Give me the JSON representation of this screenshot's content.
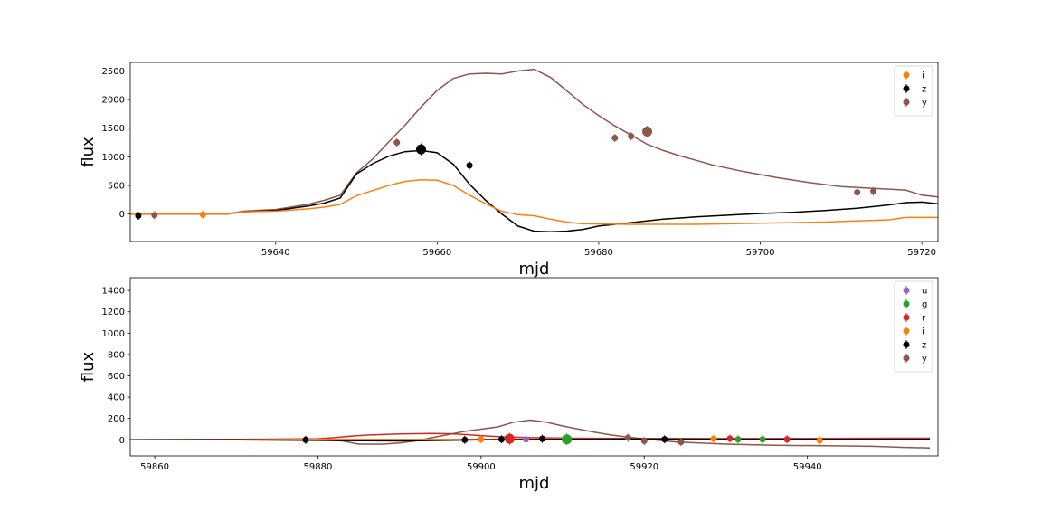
{
  "chart_data": [
    {
      "type": "line",
      "xlabel": "mjd",
      "ylabel": "flux",
      "xlim": [
        59622,
        59722
      ],
      "ylim": [
        -480,
        2650
      ],
      "xticks": [
        59640,
        59660,
        59680,
        59700,
        59720
      ],
      "yticks": [
        0,
        500,
        1000,
        1500,
        2000,
        2500
      ],
      "legend_position": "top-right",
      "legend": [
        {
          "label": "i",
          "color": "#ff7f0e"
        },
        {
          "label": "z",
          "color": "#000000"
        },
        {
          "label": "y",
          "color": "#8c564b"
        }
      ],
      "lines": [
        {
          "color": "#8c564b",
          "x": [
            59622,
            59628,
            59634,
            59636,
            59640,
            59644,
            59646,
            59648,
            59650,
            59652,
            59654,
            59656,
            59658,
            59660,
            59662,
            59664,
            59666,
            59668,
            59670,
            59672,
            59674,
            59676,
            59678,
            59680,
            59682,
            59684,
            59686,
            59688,
            59690,
            59694,
            59698,
            59702,
            59706,
            59710,
            59714,
            59718,
            59720,
            59722
          ],
          "y": [
            0,
            0,
            0,
            50,
            80,
            170,
            240,
            330,
            720,
            960,
            1260,
            1550,
            1870,
            2160,
            2370,
            2450,
            2460,
            2450,
            2500,
            2530,
            2390,
            2160,
            1920,
            1720,
            1540,
            1380,
            1220,
            1110,
            1020,
            860,
            740,
            640,
            550,
            480,
            450,
            420,
            330,
            300
          ]
        },
        {
          "color": "#000000",
          "x": [
            59622,
            59628,
            59634,
            59636,
            59640,
            59644,
            59646,
            59648,
            59650,
            59652,
            59654,
            59656,
            59658,
            59660,
            59662,
            59664,
            59666,
            59668,
            59670,
            59672,
            59674,
            59676,
            59678,
            59680,
            59684,
            59688,
            59692,
            59696,
            59700,
            59704,
            59708,
            59712,
            59716,
            59718,
            59720,
            59722
          ],
          "y": [
            0,
            0,
            0,
            40,
            60,
            140,
            190,
            280,
            700,
            880,
            1010,
            1090,
            1110,
            1070,
            870,
            520,
            240,
            0,
            -210,
            -300,
            -310,
            -300,
            -270,
            -210,
            -150,
            -90,
            -50,
            -20,
            10,
            30,
            60,
            100,
            160,
            200,
            210,
            180
          ]
        },
        {
          "color": "#ff7f0e",
          "x": [
            59622,
            59628,
            59634,
            59636,
            59640,
            59644,
            59646,
            59648,
            59650,
            59652,
            59654,
            59656,
            59658,
            59660,
            59662,
            59664,
            59666,
            59668,
            59670,
            59672,
            59674,
            59676,
            59678,
            59684,
            59692,
            59700,
            59708,
            59716,
            59718,
            59720,
            59722
          ],
          "y": [
            0,
            0,
            0,
            40,
            50,
            90,
            120,
            170,
            320,
            410,
            500,
            570,
            600,
            590,
            500,
            330,
            180,
            50,
            -10,
            -30,
            -90,
            -140,
            -170,
            -180,
            -180,
            -160,
            -140,
            -100,
            -60,
            -60,
            -60
          ]
        }
      ],
      "points": [
        {
          "color": "#000000",
          "x": 59623,
          "y": -30,
          "size": 3.5
        },
        {
          "color": "#8c564b",
          "x": 59625,
          "y": -20,
          "size": 3.5
        },
        {
          "color": "#ff7f0e",
          "x": 59631,
          "y": -10,
          "size": 3.5
        },
        {
          "color": "#8c564b",
          "x": 59655,
          "y": 1250,
          "size": 3.5
        },
        {
          "color": "#000000",
          "x": 59658,
          "y": 1130,
          "size": 5.5
        },
        {
          "color": "#000000",
          "x": 59664,
          "y": 850,
          "size": 3.5
        },
        {
          "color": "#8c564b",
          "x": 59682,
          "y": 1330,
          "size": 3.5
        },
        {
          "color": "#8c564b",
          "x": 59684,
          "y": 1360,
          "size": 3.5
        },
        {
          "color": "#8c564b",
          "x": 59686,
          "y": 1440,
          "size": 5.5
        },
        {
          "color": "#8c564b",
          "x": 59712,
          "y": 380,
          "size": 3.5
        },
        {
          "color": "#8c564b",
          "x": 59714,
          "y": 400,
          "size": 3.5
        }
      ]
    },
    {
      "type": "line",
      "xlabel": "mjd",
      "ylabel": "flux",
      "xlim": [
        59857,
        59956
      ],
      "ylim": [
        -150,
        1520
      ],
      "xticks": [
        59860,
        59880,
        59900,
        59920,
        59940
      ],
      "yticks": [
        0,
        200,
        400,
        600,
        800,
        1000,
        1200,
        1400
      ],
      "legend_position": "top-right",
      "legend": [
        {
          "label": "u",
          "color": "#9467bd"
        },
        {
          "label": "g",
          "color": "#2ca02c"
        },
        {
          "label": "r",
          "color": "#d62728"
        },
        {
          "label": "i",
          "color": "#ff7f0e"
        },
        {
          "label": "z",
          "color": "#000000"
        },
        {
          "label": "y",
          "color": "#8c564b"
        }
      ],
      "lines": [
        {
          "color": "#8c564b",
          "x": [
            59857,
            59870,
            59880,
            59883,
            59885,
            59888,
            59890,
            59892,
            59894,
            59896,
            59898,
            59900,
            59902,
            59904,
            59906,
            59908,
            59910,
            59912,
            59914,
            59916,
            59918,
            59920,
            59924,
            59930,
            59936,
            59942,
            59948,
            59952,
            59955
          ],
          "y": [
            0,
            0,
            0,
            -10,
            -40,
            -40,
            -30,
            -10,
            20,
            50,
            80,
            100,
            120,
            165,
            185,
            165,
            130,
            100,
            70,
            45,
            25,
            10,
            -20,
            -40,
            -50,
            -55,
            -60,
            -70,
            -75
          ]
        },
        {
          "color": "#d62728",
          "x": [
            59857,
            59870,
            59880,
            59882,
            59884,
            59886,
            59888,
            59890,
            59892,
            59894,
            59896,
            59898,
            59900,
            59902,
            59906,
            59912,
            59920,
            59930,
            59940,
            59950,
            59955
          ],
          "y": [
            0,
            5,
            10,
            20,
            35,
            45,
            50,
            55,
            58,
            60,
            58,
            50,
            40,
            30,
            20,
            15,
            12,
            12,
            14,
            15,
            15
          ]
        },
        {
          "color": "#ff7f0e",
          "x": [
            59857,
            59880,
            59890,
            59900,
            59910,
            59920,
            59940,
            59955
          ],
          "y": [
            0,
            5,
            5,
            5,
            8,
            8,
            6,
            5
          ]
        },
        {
          "color": "#000000",
          "x": [
            59857,
            59870,
            59880,
            59890,
            59900,
            59910,
            59920,
            59930,
            59940,
            59955
          ],
          "y": [
            0,
            0,
            -5,
            -10,
            0,
            5,
            8,
            6,
            5,
            5
          ]
        }
      ],
      "points": [
        {
          "color": "#000000",
          "x": 59878.5,
          "y": 0,
          "size": 3.5
        },
        {
          "color": "#000000",
          "x": 59898,
          "y": 0,
          "size": 3.5
        },
        {
          "color": "#ff7f0e",
          "x": 59900,
          "y": 5,
          "size": 3.5
        },
        {
          "color": "#000000",
          "x": 59902.5,
          "y": 5,
          "size": 3.5
        },
        {
          "color": "#d62728",
          "x": 59903.5,
          "y": 10,
          "size": 5.5
        },
        {
          "color": "#9467bd",
          "x": 59905.5,
          "y": 5,
          "size": 3.5
        },
        {
          "color": "#000000",
          "x": 59907.5,
          "y": 10,
          "size": 3.5
        },
        {
          "color": "#2ca02c",
          "x": 59910.5,
          "y": 5,
          "size": 5.5
        },
        {
          "color": "#8c564b",
          "x": 59918,
          "y": 20,
          "size": 3.5
        },
        {
          "color": "#8c564b",
          "x": 59920,
          "y": -10,
          "size": 3.5
        },
        {
          "color": "#000000",
          "x": 59922.5,
          "y": 5,
          "size": 3.5
        },
        {
          "color": "#8c564b",
          "x": 59924.5,
          "y": -20,
          "size": 3.5
        },
        {
          "color": "#ff7f0e",
          "x": 59928.5,
          "y": 10,
          "size": 3.5
        },
        {
          "color": "#d62728",
          "x": 59930.5,
          "y": 12,
          "size": 3.5
        },
        {
          "color": "#2ca02c",
          "x": 59931.5,
          "y": 5,
          "size": 3.5
        },
        {
          "color": "#2ca02c",
          "x": 59934.5,
          "y": 5,
          "size": 3.5
        },
        {
          "color": "#d62728",
          "x": 59937.5,
          "y": 5,
          "size": 3.5
        },
        {
          "color": "#ff7f0e",
          "x": 59941.5,
          "y": -5,
          "size": 3.5
        }
      ]
    }
  ]
}
